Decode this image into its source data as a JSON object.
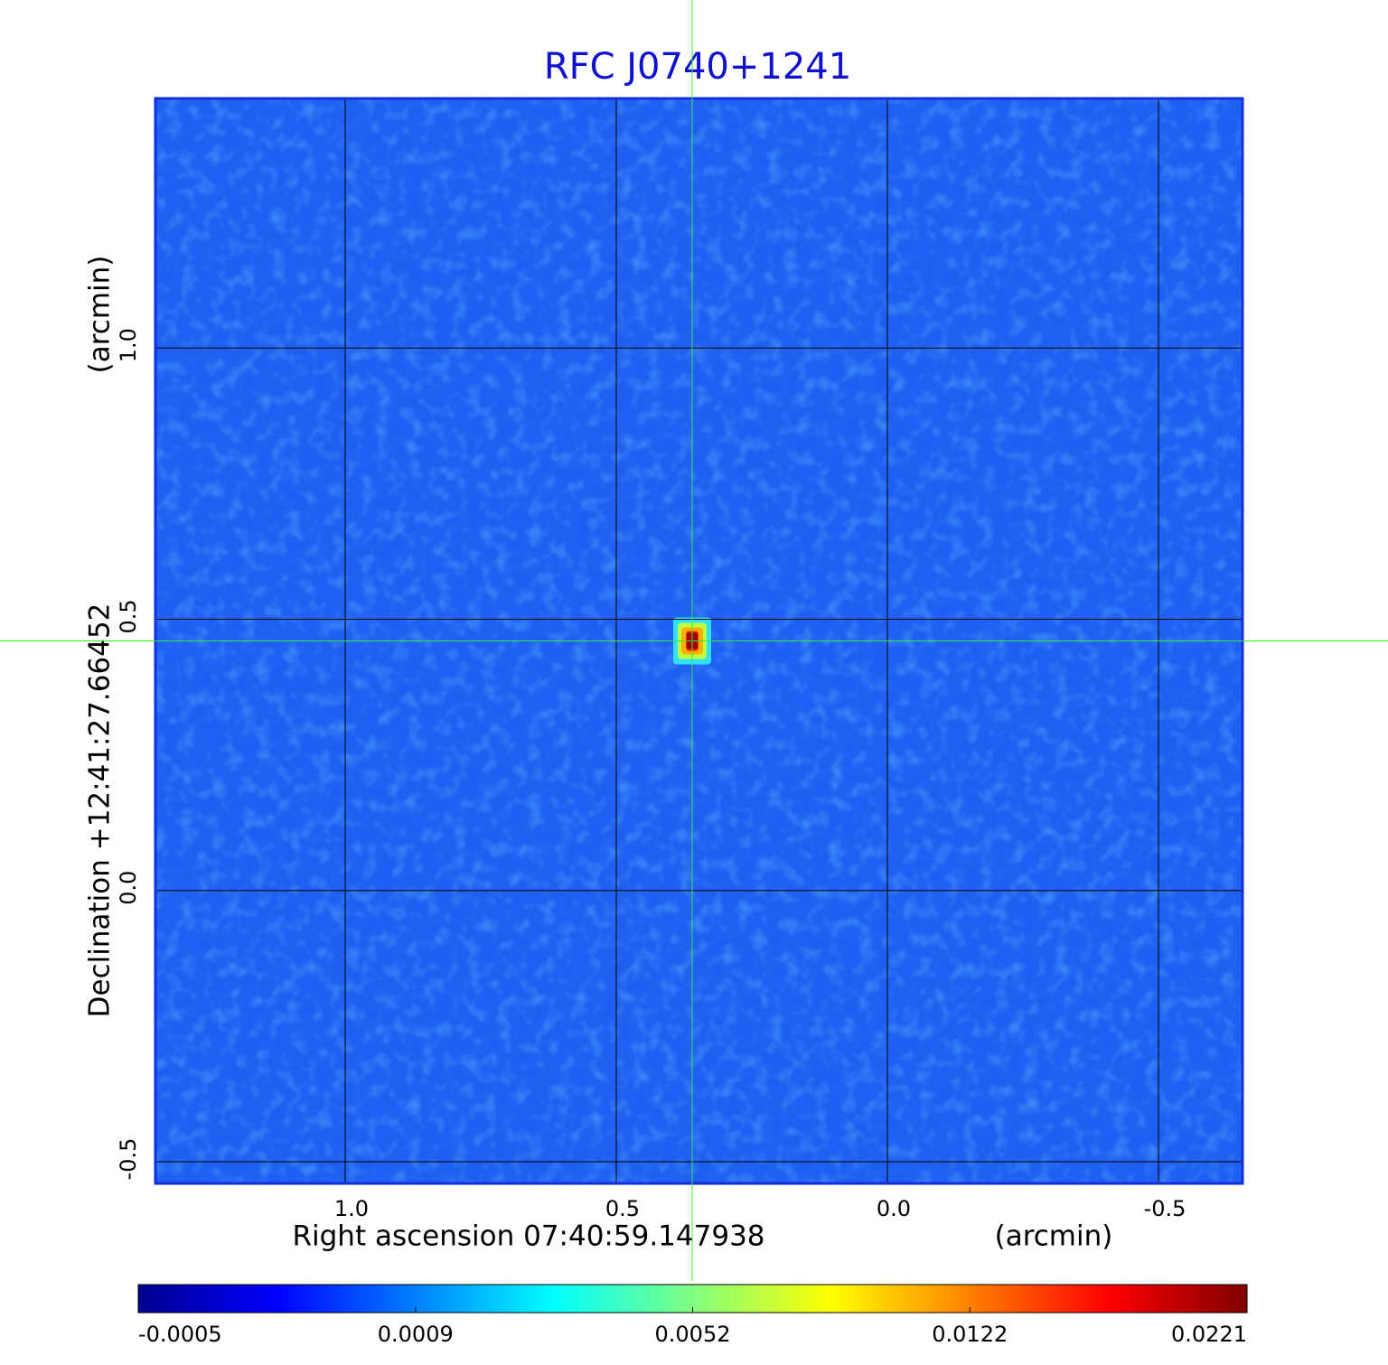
{
  "chart_data": {
    "type": "image",
    "title": "RFC J0740+1241",
    "x_label": "Right ascension  07:40:59.147938",
    "x_unit": "(arcmin)",
    "y_label": "Declination  +12:41:27.66452",
    "y_unit": "(arcmin)",
    "xlim": [
      1.35,
      -0.655
    ],
    "ylim": [
      -0.54,
      1.46
    ],
    "xticks": [
      {
        "value": 1,
        "label": "1.0"
      },
      0.5,
      {
        "value": 0,
        "label": "0.0"
      },
      -0.5
    ],
    "yticks": [
      -0.5,
      {
        "value": 0,
        "label": "0.0"
      },
      0.5,
      {
        "value": 1,
        "label": "1.0"
      }
    ],
    "grid": true,
    "background_color": "#1f5ff2",
    "source": {
      "x": 0.36,
      "y": 0.46,
      "peak": 0.0221
    },
    "crosshair": {
      "x": 0.36,
      "y": 0.46,
      "color": "#33ee33"
    },
    "colorbar_ticks": [
      -0.0005,
      0.0009,
      0.0052,
      0.0122,
      0.0221
    ],
    "colorbar_colors": [
      "#00008f",
      "#0000ff",
      "#0080ff",
      "#00ffff",
      "#80ff80",
      "#ffff00",
      "#ff8000",
      "#ff0000",
      "#800000"
    ]
  }
}
